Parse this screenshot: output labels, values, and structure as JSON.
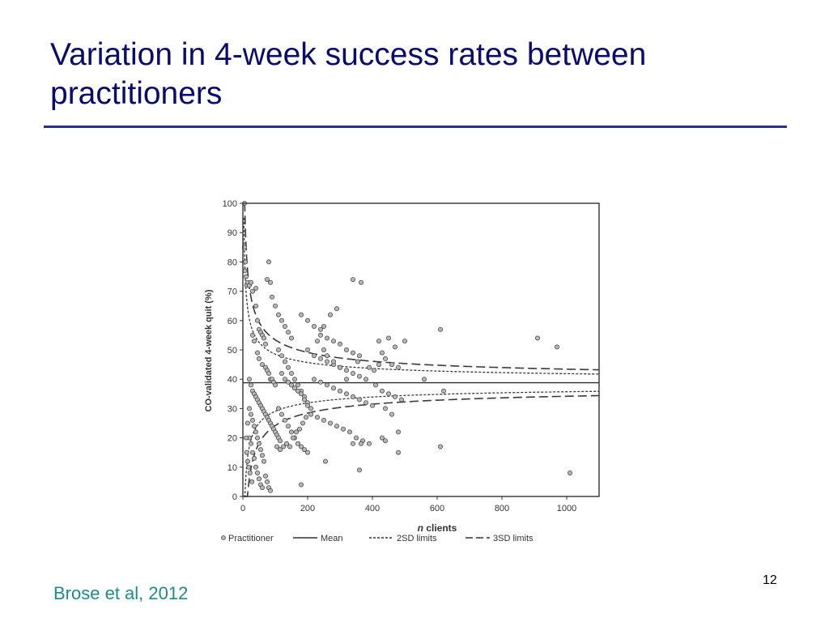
{
  "slide": {
    "title": "Variation in 4-week success rates between practitioners",
    "citation": "Brose et al, 2012",
    "page_number": "12"
  },
  "chart_data": {
    "type": "scatter",
    "xlabel_em": "n",
    "xlabel_rest": " clients",
    "ylabel": "CO-validated 4-week quit (%)",
    "xlim": [
      0,
      1100
    ],
    "ylim": [
      0,
      100
    ],
    "x_ticks": [
      0,
      200,
      400,
      600,
      800,
      1000
    ],
    "y_ticks": [
      0,
      10,
      20,
      30,
      40,
      50,
      60,
      70,
      80,
      90,
      100
    ],
    "grid": false,
    "legend_placement": "bottom",
    "legend": [
      {
        "label": "Practitioner",
        "style": "marker"
      },
      {
        "label": "Mean",
        "style": "solid"
      },
      {
        "label": "2SD limits",
        "style": "dotted"
      },
      {
        "label": "3SD limits",
        "style": "dashed"
      }
    ],
    "mean": 38.8,
    "series": [
      {
        "name": "Practitioner",
        "points": [
          [
            5,
            100
          ],
          [
            5,
            85
          ],
          [
            8,
            80
          ],
          [
            6,
            77
          ],
          [
            10,
            75
          ],
          [
            12,
            72
          ],
          [
            15,
            73
          ],
          [
            20,
            72
          ],
          [
            25,
            73
          ],
          [
            30,
            70
          ],
          [
            40,
            71
          ],
          [
            40,
            65
          ],
          [
            45,
            60
          ],
          [
            50,
            57
          ],
          [
            55,
            56
          ],
          [
            60,
            55
          ],
          [
            65,
            54
          ],
          [
            70,
            52
          ],
          [
            30,
            55
          ],
          [
            35,
            53
          ],
          [
            45,
            49
          ],
          [
            50,
            47
          ],
          [
            60,
            45
          ],
          [
            70,
            44
          ],
          [
            75,
            43
          ],
          [
            80,
            42
          ],
          [
            85,
            40
          ],
          [
            90,
            40
          ],
          [
            95,
            39
          ],
          [
            100,
            38
          ],
          [
            20,
            40
          ],
          [
            25,
            38
          ],
          [
            30,
            36
          ],
          [
            35,
            35
          ],
          [
            40,
            34
          ],
          [
            45,
            33
          ],
          [
            50,
            32
          ],
          [
            55,
            31
          ],
          [
            60,
            30
          ],
          [
            65,
            29
          ],
          [
            70,
            28
          ],
          [
            75,
            27
          ],
          [
            80,
            26
          ],
          [
            85,
            25
          ],
          [
            90,
            24
          ],
          [
            95,
            23
          ],
          [
            100,
            22
          ],
          [
            105,
            21
          ],
          [
            110,
            20
          ],
          [
            115,
            19
          ],
          [
            20,
            30
          ],
          [
            25,
            28
          ],
          [
            30,
            26
          ],
          [
            35,
            24
          ],
          [
            40,
            22
          ],
          [
            45,
            20
          ],
          [
            50,
            18
          ],
          [
            55,
            16
          ],
          [
            60,
            14
          ],
          [
            65,
            12
          ],
          [
            15,
            25
          ],
          [
            20,
            20
          ],
          [
            25,
            18
          ],
          [
            30,
            15
          ],
          [
            35,
            13
          ],
          [
            40,
            10
          ],
          [
            45,
            8
          ],
          [
            50,
            6
          ],
          [
            55,
            4
          ],
          [
            60,
            3
          ],
          [
            10,
            20
          ],
          [
            12,
            15
          ],
          [
            15,
            12
          ],
          [
            18,
            10
          ],
          [
            22,
            8
          ],
          [
            28,
            5
          ],
          [
            70,
            7
          ],
          [
            80,
            3
          ],
          [
            85,
            2
          ],
          [
            75,
            5
          ],
          [
            80,
            80
          ],
          [
            85,
            73
          ],
          [
            75,
            74
          ],
          [
            90,
            68
          ],
          [
            100,
            65
          ],
          [
            110,
            62
          ],
          [
            120,
            60
          ],
          [
            130,
            58
          ],
          [
            140,
            56
          ],
          [
            150,
            54
          ],
          [
            110,
            50
          ],
          [
            120,
            48
          ],
          [
            130,
            46
          ],
          [
            140,
            44
          ],
          [
            150,
            42
          ],
          [
            160,
            40
          ],
          [
            170,
            38
          ],
          [
            180,
            36
          ],
          [
            190,
            34
          ],
          [
            200,
            32
          ],
          [
            120,
            42
          ],
          [
            130,
            40
          ],
          [
            140,
            39
          ],
          [
            150,
            38
          ],
          [
            160,
            37
          ],
          [
            170,
            36
          ],
          [
            180,
            35
          ],
          [
            190,
            33
          ],
          [
            200,
            31
          ],
          [
            210,
            30
          ],
          [
            110,
            30
          ],
          [
            120,
            28
          ],
          [
            130,
            26
          ],
          [
            140,
            24
          ],
          [
            150,
            22
          ],
          [
            160,
            20
          ],
          [
            170,
            18
          ],
          [
            180,
            17
          ],
          [
            190,
            16
          ],
          [
            200,
            15
          ],
          [
            105,
            17
          ],
          [
            115,
            16
          ],
          [
            125,
            17
          ],
          [
            135,
            18
          ],
          [
            145,
            17
          ],
          [
            155,
            20
          ],
          [
            165,
            22
          ],
          [
            175,
            23
          ],
          [
            185,
            25
          ],
          [
            195,
            27
          ],
          [
            180,
            62
          ],
          [
            200,
            60
          ],
          [
            220,
            58
          ],
          [
            240,
            57
          ],
          [
            260,
            54
          ],
          [
            280,
            53
          ],
          [
            300,
            52
          ],
          [
            320,
            50
          ],
          [
            340,
            49
          ],
          [
            360,
            48
          ],
          [
            200,
            50
          ],
          [
            220,
            48
          ],
          [
            240,
            47
          ],
          [
            260,
            46
          ],
          [
            280,
            45
          ],
          [
            300,
            44
          ],
          [
            320,
            43
          ],
          [
            340,
            42
          ],
          [
            360,
            41
          ],
          [
            380,
            40
          ],
          [
            220,
            40
          ],
          [
            240,
            39
          ],
          [
            260,
            38
          ],
          [
            280,
            37
          ],
          [
            300,
            36
          ],
          [
            320,
            35
          ],
          [
            340,
            34
          ],
          [
            360,
            33
          ],
          [
            380,
            32
          ],
          [
            400,
            31
          ],
          [
            210,
            28
          ],
          [
            230,
            27
          ],
          [
            250,
            26
          ],
          [
            270,
            25
          ],
          [
            290,
            24
          ],
          [
            310,
            23
          ],
          [
            330,
            22
          ],
          [
            350,
            20
          ],
          [
            370,
            19
          ],
          [
            390,
            18
          ],
          [
            290,
            64
          ],
          [
            270,
            62
          ],
          [
            250,
            58
          ],
          [
            240,
            55
          ],
          [
            230,
            53
          ],
          [
            250,
            50
          ],
          [
            260,
            48
          ],
          [
            280,
            46
          ],
          [
            300,
            44
          ],
          [
            320,
            40
          ],
          [
            340,
            74
          ],
          [
            365,
            73
          ],
          [
            420,
            53
          ],
          [
            450,
            54
          ],
          [
            470,
            51
          ],
          [
            500,
            53
          ],
          [
            430,
            49
          ],
          [
            440,
            47
          ],
          [
            460,
            45
          ],
          [
            480,
            44
          ],
          [
            410,
            38
          ],
          [
            430,
            36
          ],
          [
            450,
            35
          ],
          [
            470,
            34
          ],
          [
            490,
            33
          ],
          [
            440,
            30
          ],
          [
            460,
            28
          ],
          [
            480,
            22
          ],
          [
            430,
            20
          ],
          [
            440,
            19
          ],
          [
            340,
            18
          ],
          [
            365,
            18
          ],
          [
            360,
            9
          ],
          [
            255,
            12
          ],
          [
            180,
            4
          ],
          [
            480,
            15
          ],
          [
            610,
            17
          ],
          [
            620,
            36
          ],
          [
            560,
            40
          ],
          [
            610,
            57
          ],
          [
            910,
            54
          ],
          [
            970,
            51
          ],
          [
            1010,
            8
          ],
          [
            420,
            45
          ],
          [
            405,
            43
          ],
          [
            390,
            44
          ],
          [
            355,
            46
          ]
        ]
      }
    ]
  }
}
